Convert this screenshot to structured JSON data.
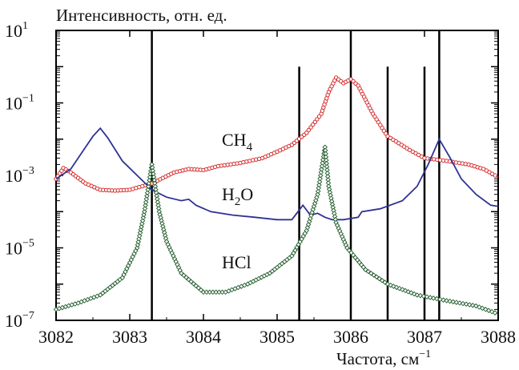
{
  "chart_data": {
    "type": "line",
    "ylabel": "Интенсивность, отн. ед.",
    "xlabel_main": "Частота, см",
    "xlabel_exp": "−1",
    "x_scale": "linear",
    "y_scale": "log",
    "xlim": [
      3082,
      3088
    ],
    "ylim": [
      1e-07,
      10
    ],
    "grid": false,
    "x_ticks": [
      3082,
      3083,
      3084,
      3085,
      3086,
      3087,
      3088
    ],
    "x_tick_labels": [
      "3082",
      "3083",
      "3084",
      "3085",
      "3086",
      "3087",
      "3088"
    ],
    "y_ticks": [
      {
        "value": 10,
        "base": "10",
        "exp": "1"
      },
      {
        "value": 0.1,
        "base": "10",
        "exp": "−1"
      },
      {
        "value": 0.001,
        "base": "10",
        "exp": "−3"
      },
      {
        "value": 1e-05,
        "base": "10",
        "exp": "−5"
      },
      {
        "value": 1e-07,
        "base": "10",
        "exp": "−7"
      }
    ],
    "vertical_lines": [
      3083.3,
      3085.3,
      3086.0,
      3086.5,
      3087.0,
      3087.2
    ],
    "series": [
      {
        "name": "CH4",
        "label_main": "CH",
        "label_sub": "4",
        "color": "#d42a2a",
        "marker": "circle",
        "x": [
          3082.0,
          3082.1,
          3082.2,
          3082.4,
          3082.6,
          3082.8,
          3083.0,
          3083.3,
          3083.6,
          3083.8,
          3084.0,
          3084.2,
          3084.5,
          3084.8,
          3085.0,
          3085.2,
          3085.4,
          3085.6,
          3085.7,
          3085.8,
          3085.9,
          3086.0,
          3086.1,
          3086.3,
          3086.5,
          3086.8,
          3087.0,
          3087.3,
          3087.6,
          3087.8,
          3088.0
        ],
        "y": [
          0.0008,
          0.0016,
          0.0012,
          0.0006,
          0.0004,
          0.00038,
          0.0004,
          0.0006,
          0.0012,
          0.0015,
          0.0014,
          0.0018,
          0.0022,
          0.003,
          0.0045,
          0.007,
          0.015,
          0.05,
          0.2,
          0.5,
          0.35,
          0.45,
          0.3,
          0.05,
          0.012,
          0.005,
          0.003,
          0.0025,
          0.002,
          0.0015,
          0.0009
        ]
      },
      {
        "name": "H2O",
        "label_main": "H",
        "label_sub": "2",
        "label_rest": "O",
        "color": "#2e3294",
        "marker": "none",
        "x": [
          3082.0,
          3082.2,
          3082.4,
          3082.5,
          3082.6,
          3082.7,
          3082.9,
          3083.1,
          3083.3,
          3083.5,
          3083.7,
          3083.8,
          3083.9,
          3084.1,
          3084.4,
          3084.7,
          3085.0,
          3085.2,
          3085.35,
          3085.45,
          3085.55,
          3085.65,
          3085.75,
          3085.9,
          3086.1,
          3086.15,
          3086.4,
          3086.7,
          3086.9,
          3087.05,
          3087.2,
          3087.35,
          3087.5,
          3087.7,
          3087.9,
          3088.0
        ],
        "y": [
          0.0008,
          0.0015,
          0.006,
          0.012,
          0.02,
          0.011,
          0.0025,
          0.001,
          0.0004,
          0.00025,
          0.0002,
          0.00022,
          0.00015,
          0.0001,
          8e-05,
          7e-05,
          6e-05,
          6e-05,
          0.00015,
          8e-05,
          9e-05,
          7e-05,
          6e-05,
          6e-05,
          7e-05,
          0.0001,
          0.00012,
          0.0002,
          0.0005,
          0.002,
          0.01,
          0.003,
          0.0008,
          0.0003,
          0.00015,
          0.00014
        ]
      },
      {
        "name": "HCl",
        "label_main": "HCl",
        "color": "#1f5a2a",
        "marker": "diamond",
        "x": [
          3082.0,
          3082.3,
          3082.6,
          3082.9,
          3083.1,
          3083.2,
          3083.3,
          3083.4,
          3083.5,
          3083.7,
          3084.0,
          3084.3,
          3084.6,
          3084.9,
          3085.2,
          3085.4,
          3085.55,
          3085.65,
          3085.7,
          3085.8,
          3085.95,
          3086.2,
          3086.5,
          3086.9,
          3087.3,
          3087.7,
          3088.0
        ],
        "y": [
          2e-07,
          3e-07,
          5e-07,
          1.5e-06,
          1e-05,
          0.0001,
          0.002,
          0.0001,
          1.5e-05,
          2e-06,
          6e-07,
          6e-07,
          1e-06,
          2e-06,
          6e-06,
          3e-05,
          0.0003,
          0.006,
          0.0005,
          5e-05,
          1e-05,
          2.5e-06,
          1e-06,
          5e-07,
          3.5e-07,
          2.5e-07,
          1.5e-07
        ]
      }
    ]
  }
}
